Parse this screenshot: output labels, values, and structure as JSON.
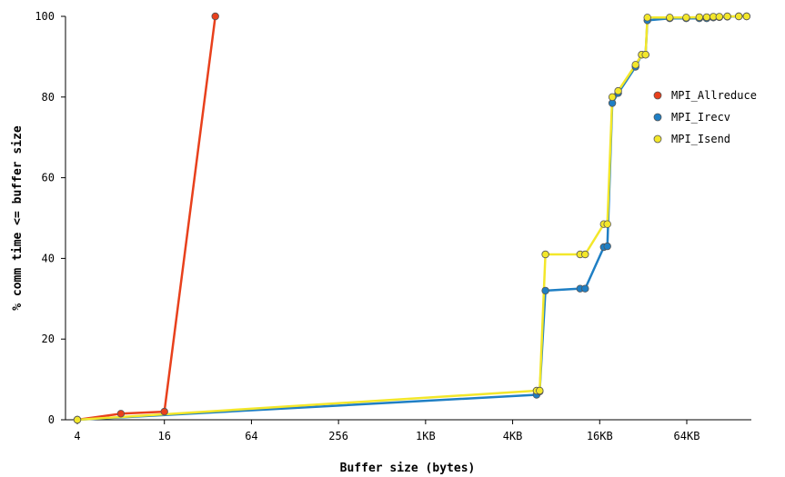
{
  "chart_data": {
    "type": "line",
    "title": "",
    "xlabel": "Buffer size (bytes)",
    "ylabel": "% comm time <= buffer size",
    "xscale": "log2",
    "xlim": [
      4,
      180000
    ],
    "ylim": [
      0,
      100
    ],
    "x_ticks": [
      {
        "value": 4,
        "label": "4"
      },
      {
        "value": 16,
        "label": "16"
      },
      {
        "value": 64,
        "label": "64"
      },
      {
        "value": 256,
        "label": "256"
      },
      {
        "value": 1024,
        "label": "1KB"
      },
      {
        "value": 4096,
        "label": "4KB"
      },
      {
        "value": 16384,
        "label": "16KB"
      },
      {
        "value": 65536,
        "label": "64KB"
      }
    ],
    "y_ticks": [
      0,
      20,
      40,
      60,
      80,
      100
    ],
    "grid": false,
    "legend_position": "right",
    "series": [
      {
        "name": "MPI_Allreduce",
        "color": "#e8401c",
        "x": [
          4,
          8,
          16,
          36
        ],
        "y": [
          0,
          1.5,
          2,
          100
        ]
      },
      {
        "name": "MPI_Irecv",
        "color": "#1f7fc4",
        "x": [
          4,
          6000,
          6300,
          6900,
          12000,
          13000,
          17500,
          18500,
          20000,
          22000,
          29000,
          32000,
          34000,
          35000,
          50000,
          65000,
          80000,
          90000,
          100000,
          110000,
          125000,
          150000,
          170000
        ],
        "y": [
          0,
          6.2,
          7,
          32,
          32.5,
          32.5,
          42.8,
          43,
          78.5,
          81,
          87.5,
          90.5,
          90.5,
          99,
          99.5,
          99.5,
          99.5,
          99.5,
          99.7,
          99.8,
          99.9,
          100,
          100
        ]
      },
      {
        "name": "MPI_Isend",
        "color": "#f3e72a",
        "x": [
          4,
          6000,
          6300,
          6900,
          12000,
          13000,
          17500,
          18500,
          20000,
          22000,
          29000,
          32000,
          34000,
          35000,
          50000,
          65000,
          80000,
          90000,
          100000,
          110000,
          125000,
          150000,
          170000
        ],
        "y": [
          0,
          7.2,
          7.2,
          41,
          41,
          41,
          48.5,
          48.5,
          80,
          81.5,
          88,
          90.5,
          90.5,
          99.7,
          99.7,
          99.7,
          99.8,
          99.8,
          99.9,
          99.9,
          100,
          100,
          100
        ]
      }
    ]
  }
}
